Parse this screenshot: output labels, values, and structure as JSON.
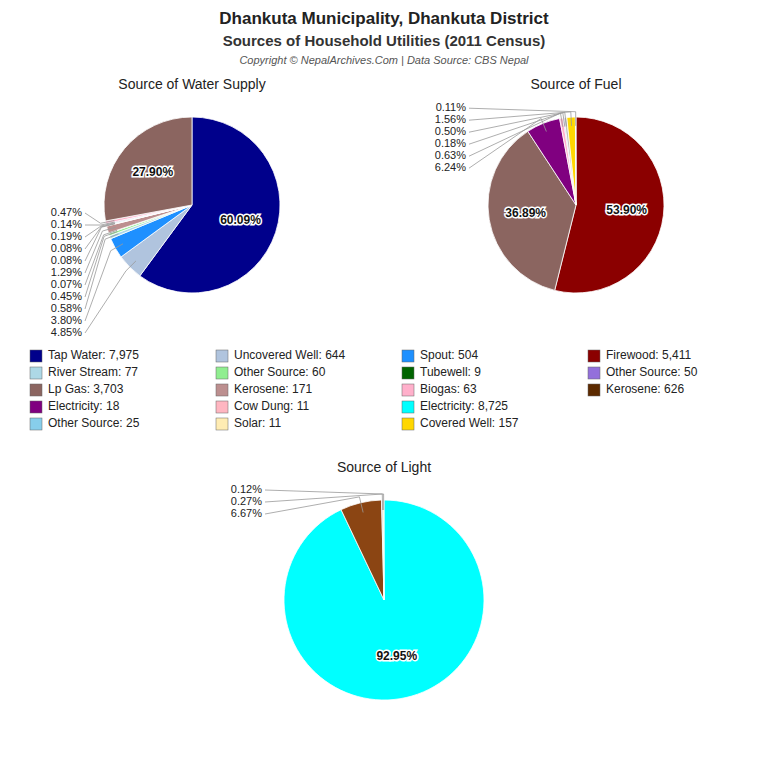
{
  "chart_data": [
    {
      "type": "pie",
      "title": "Source of Water Supply",
      "values": [
        60.09,
        4.85,
        3.8,
        0.58,
        0.45,
        0.07,
        1.29,
        0.08,
        0.08,
        0.19,
        0.14,
        0.47,
        27.9
      ],
      "value_labels": [
        "60.09%",
        "4.85%",
        "3.80%",
        "0.58%",
        "0.45%",
        "0.07%",
        "1.29%",
        "0.08%",
        "0.08%",
        "0.19%",
        "0.14%",
        "0.47%",
        "27.90%"
      ],
      "colors": [
        "#00008B",
        "#B0C4DE",
        "#1E90FF",
        "#ADD8E6",
        "#90EE90",
        "#006400",
        "#BC8F8F",
        "#FFB6C1",
        "#FFECB3",
        "#87CEEB",
        "#800080",
        "#FFB0CB",
        "#8B6560"
      ],
      "data_labels": true
    },
    {
      "type": "pie",
      "title": "Source of Fuel",
      "values": [
        53.9,
        36.89,
        6.24,
        0.63,
        0.18,
        0.5,
        1.56,
        0.11
      ],
      "value_labels": [
        "53.90%",
        "36.89%",
        "6.24%",
        "0.63%",
        "0.18%",
        "0.50%",
        "1.56%",
        "0.11%"
      ],
      "colors": [
        "#8B0000",
        "#8B6560",
        "#800080",
        "#FFB0CB",
        "#9370DB",
        "#C0C0C0",
        "#FFD700",
        "#87CEEB"
      ],
      "data_labels": true
    },
    {
      "type": "pie",
      "title": "Source of Light",
      "values": [
        92.95,
        6.67,
        0.27,
        0.12
      ],
      "value_labels": [
        "92.95%",
        "6.67%",
        "0.27%",
        "0.12%"
      ],
      "colors": [
        "#00FFFF",
        "#8B4513",
        "#D3D3D3",
        "#FFD700"
      ],
      "data_labels": true
    },
    {
      "type": "legend",
      "title": "Dhankuta Municipality, Dhankuta District",
      "subtitle": "Sources of Household Utilities (2011 Census)",
      "annotations": [
        "Copyright © NepalArchives.Com | Data Source: CBS Nepal"
      ],
      "categories": [
        "Tap Water: 7,975",
        "River Stream: 77",
        "Lp Gas: 3,703",
        "Electricity: 18",
        "Other Source: 25",
        "Uncovered Well: 644",
        "Other Source: 60",
        "Kerosene: 171",
        "Cow Dung: 11",
        "Solar: 11",
        "Spout: 504",
        "Tubewell: 9",
        "Biogas: 63",
        "Electricity: 8,725",
        "Covered Well: 157",
        "Firewood: 5,411",
        "Other Source: 50",
        "Kerosene: 626"
      ],
      "colors": [
        "#00008B",
        "#ADD8E6",
        "#8B6560",
        "#800080",
        "#87CEEB",
        "#B0C4DE",
        "#90EE90",
        "#BC8F8F",
        "#FFB6C1",
        "#FFECB3",
        "#1E90FF",
        "#006400",
        "#FFB0CB",
        "#00FFFF",
        "#FFD700",
        "#8B0000",
        "#9370DB",
        "#5C2A00"
      ]
    }
  ]
}
